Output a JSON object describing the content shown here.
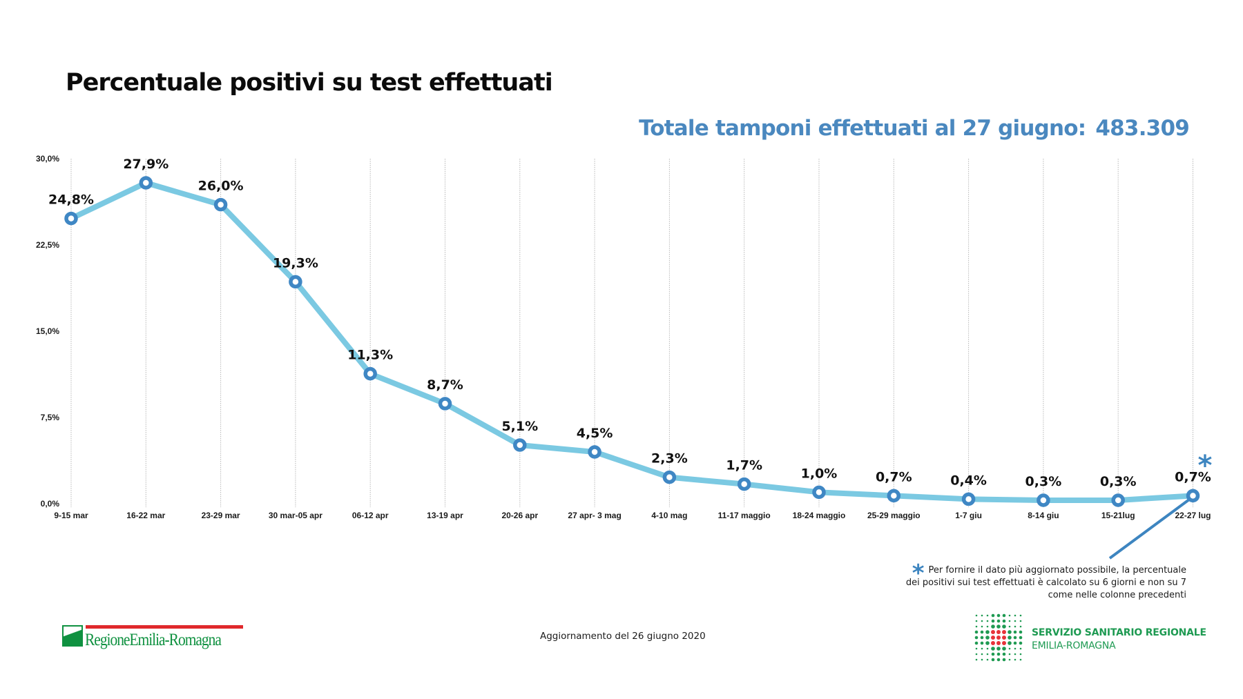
{
  "title": "Percentuale positivi su test effettuati",
  "headline": {
    "label": "Totale tamponi effettuati al 27 giugno:",
    "value": "483.309"
  },
  "colors": {
    "line": "#7bc9e2",
    "marker": "#3f87c4",
    "headline": "#4a88bf",
    "grid": "#b8b8b8"
  },
  "chart_data": {
    "type": "line",
    "title": "Percentuale positivi su test effettuati",
    "xlabel": "",
    "ylabel": "",
    "ylim": [
      0,
      30
    ],
    "yticks": [
      0,
      7.5,
      15,
      22.5,
      30
    ],
    "ytick_labels": [
      "0,0%",
      "7,5%",
      "15,0%",
      "22,5%",
      "30,0%"
    ],
    "grid": "vertical dotted",
    "legend": "none",
    "categories": [
      "9-15 mar",
      "16-22 mar",
      "23-29 mar",
      "30 mar-05 apr",
      "06-12 apr",
      "13-19 apr",
      "20-26 apr",
      "27 apr- 3 mag",
      "4-10 mag",
      "11-17 maggio",
      "18-24 maggio",
      "25-29 maggio",
      "1-7 giu",
      "8-14 giu",
      "15-21lug",
      "22-27 lug"
    ],
    "series": [
      {
        "name": "Percentuale positivi",
        "values": [
          24.8,
          27.9,
          26.0,
          19.3,
          11.3,
          8.7,
          5.1,
          4.5,
          2.3,
          1.7,
          1.0,
          0.7,
          0.4,
          0.3,
          0.3,
          0.7
        ],
        "labels": [
          "24,8%",
          "27,9%",
          "26,0%",
          "19,3%",
          "11,3%",
          "8,7%",
          "5,1%",
          "4,5%",
          "2,3%",
          "1,7%",
          "1,0%",
          "0,7%",
          "0,4%",
          "0,3%",
          "0,3%",
          "0,7%"
        ]
      }
    ],
    "annotations": [
      {
        "target_category": "22-27 lug",
        "marker": "*",
        "text": "Per fornire il dato più aggiornato possibile, la percentuale dei positivi sui test effettuati è calcolato su 6 giorni e non su 7 come nelle colonne precedenti"
      }
    ]
  },
  "footnote": {
    "marker": "*",
    "line1": "Per fornire il dato più aggiornato possibile, la percentuale",
    "line2": "dei positivi sui test effettuati è calcolato su 6 giorni e non su 7",
    "line3": "come nelle colonne precedenti"
  },
  "footer": {
    "updated": "Aggiornamento del 26 giugno 2020",
    "region_logo": "RegioneEmilia-Romagna",
    "ssr_line1": "SERVIZIO SANITARIO REGIONALE",
    "ssr_line2": "EMILIA-ROMAGNA"
  },
  "icons": {
    "asterisk": "asterisk-icon",
    "region_flag": "region-flag-icon",
    "ssr_dots": "dot-grid-cross-icon"
  }
}
